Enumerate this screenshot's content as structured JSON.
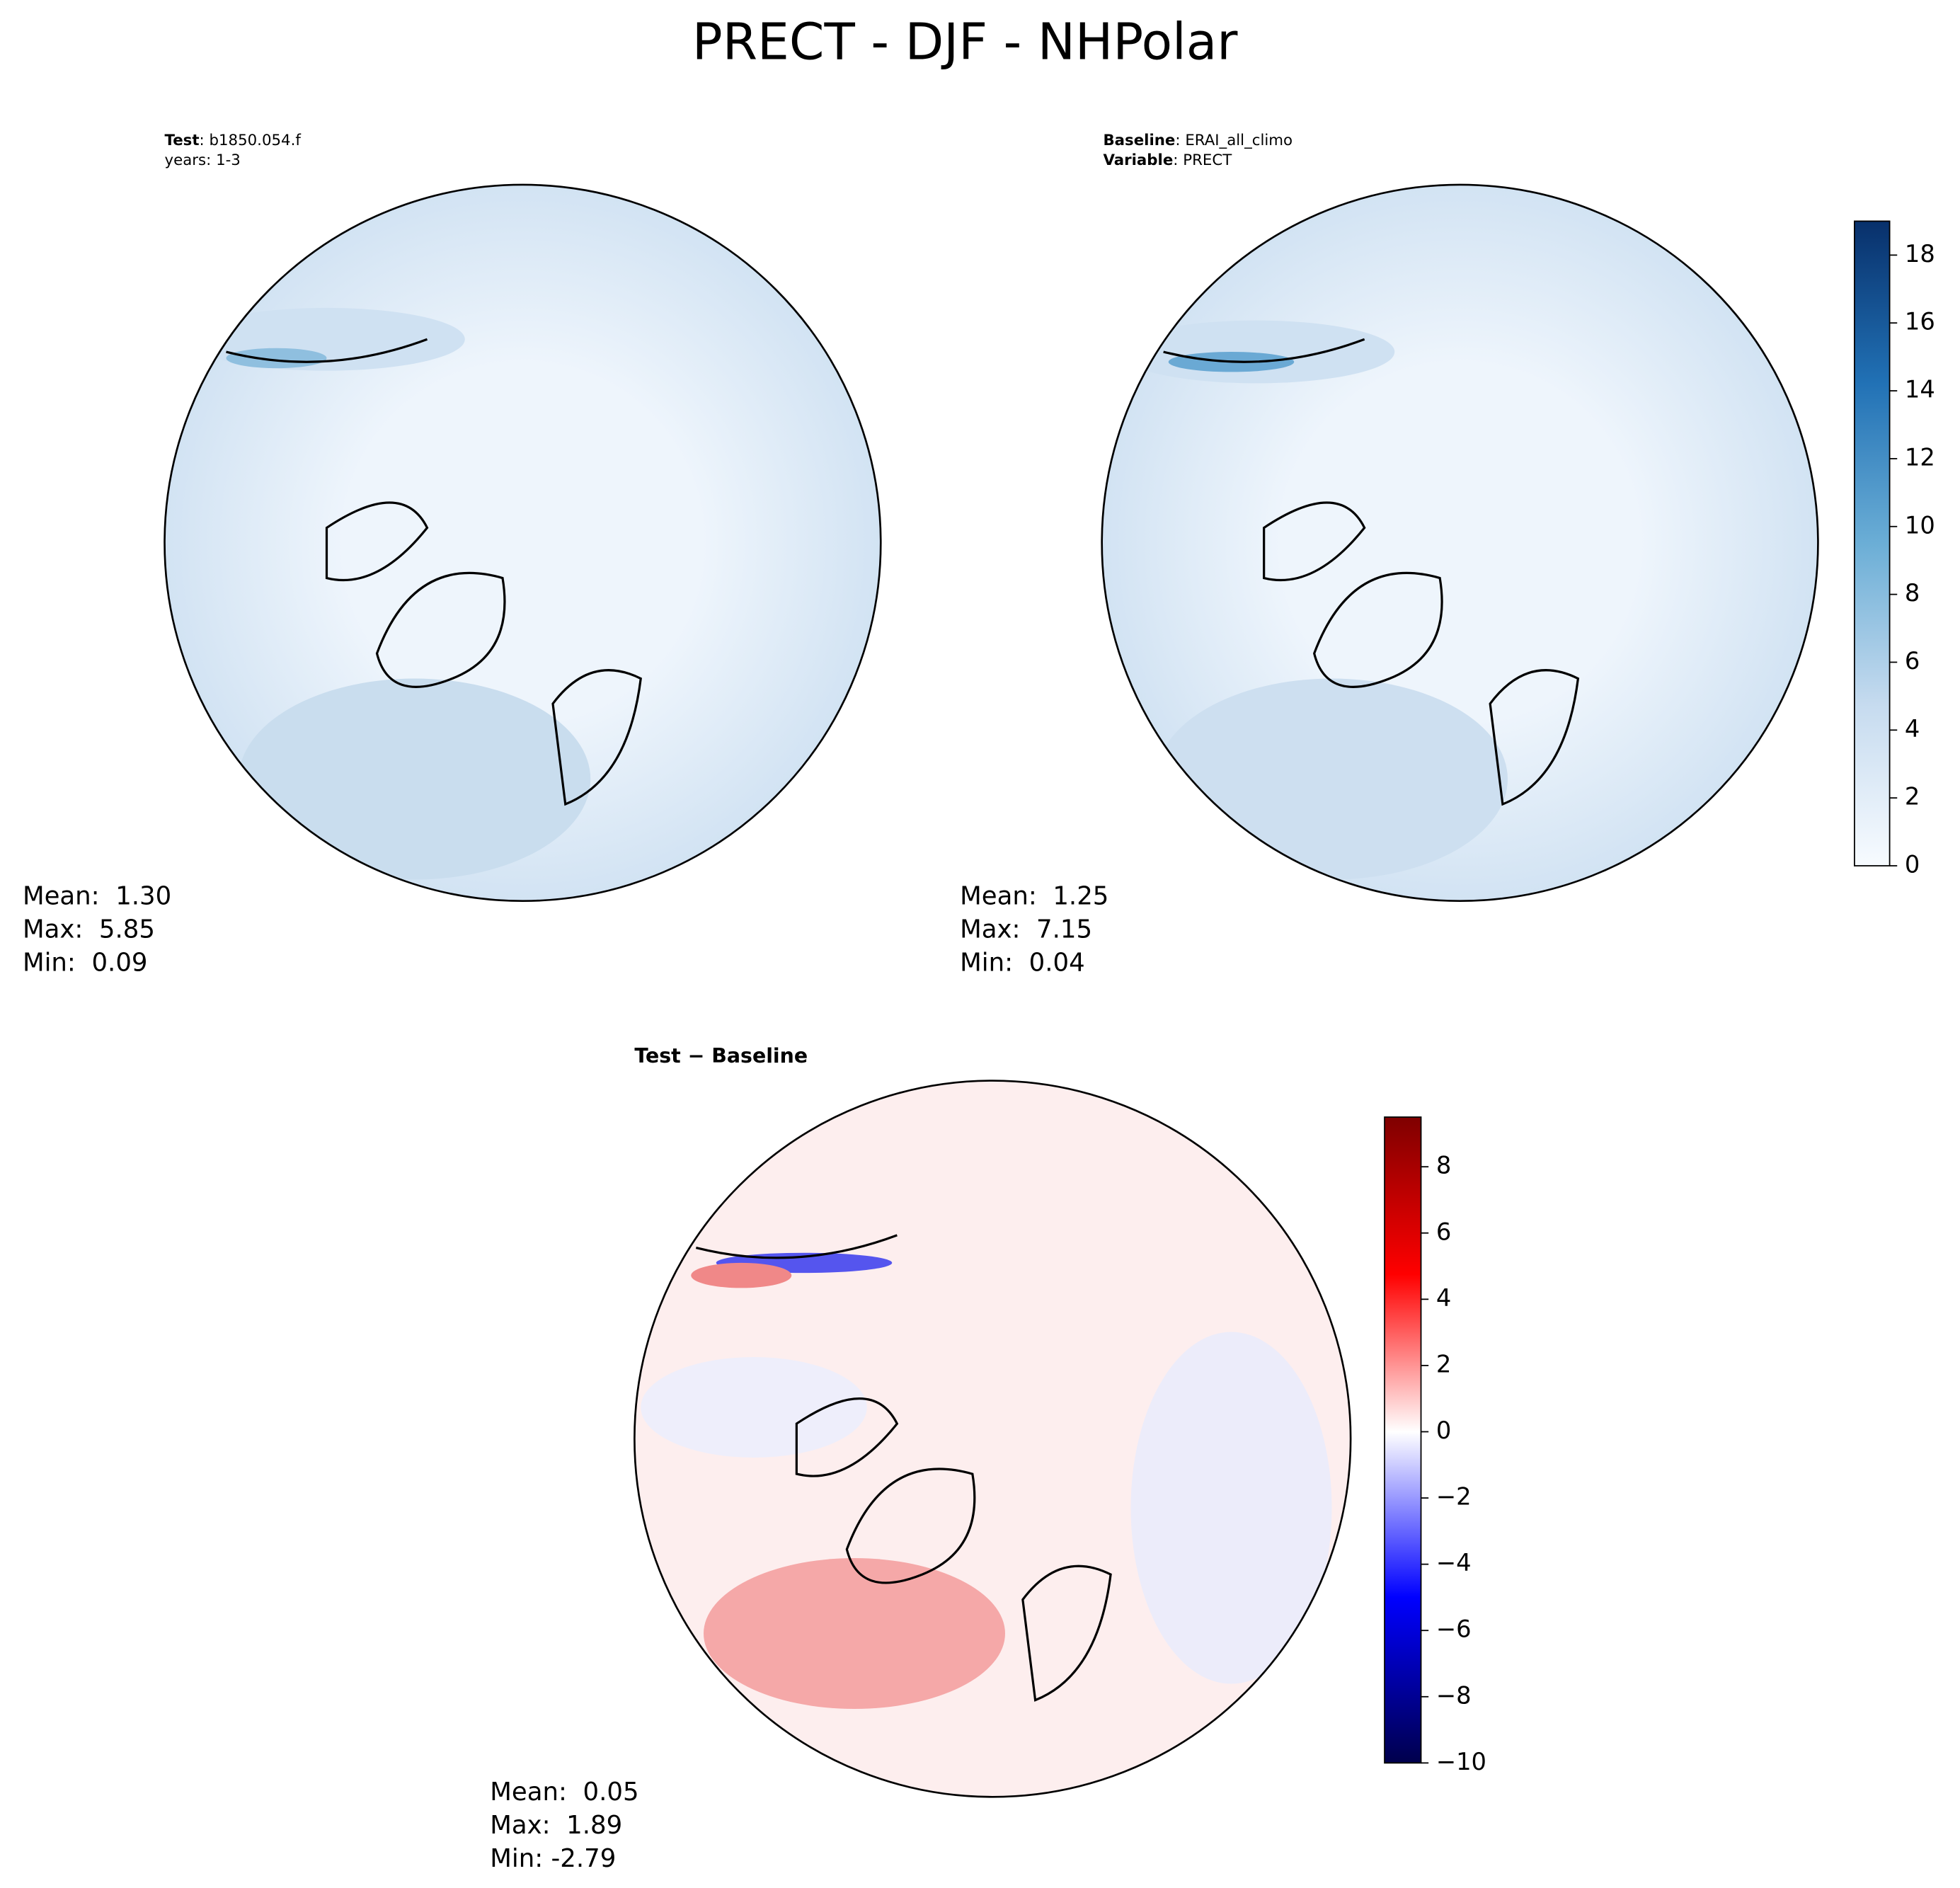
{
  "title": "PRECT - DJF - NHPolar",
  "panels": [
    {
      "lines": [
        {
          "key": "Test",
          "text": ": b1850.054.f"
        },
        {
          "text": "years: 1-3"
        }
      ],
      "stats": [
        "Mean:  1.30",
        "Max:  5.85",
        "Min:  0.09"
      ]
    },
    {
      "lines": [
        {
          "key": "Baseline",
          "text": ": ERAI_all_climo"
        },
        {
          "key": "Variable",
          "text": ": PRECT"
        }
      ],
      "stats": [
        "Mean:  1.25",
        "Max:  7.15",
        "Min:  0.04"
      ]
    },
    {
      "lines": [
        {
          "key": "Test − Baseline"
        }
      ],
      "stats": [
        "Mean:  0.05",
        "Max:  1.89",
        "Min: -2.79"
      ]
    }
  ],
  "colorbars": [
    {
      "lim": [
        0,
        19
      ],
      "ticks": [
        0,
        2,
        4,
        6,
        8,
        10,
        12,
        14,
        16,
        18
      ]
    },
    {
      "lim": [
        -10,
        9.5
      ],
      "ticks": [
        {
          "value": -10,
          "label": "−10"
        },
        {
          "value": -8,
          "label": "−8"
        },
        {
          "value": -6,
          "label": "−6"
        },
        {
          "value": -4,
          "label": "−4"
        },
        {
          "value": -2,
          "label": "−2"
        },
        0,
        2,
        4,
        6,
        8
      ]
    }
  ]
}
